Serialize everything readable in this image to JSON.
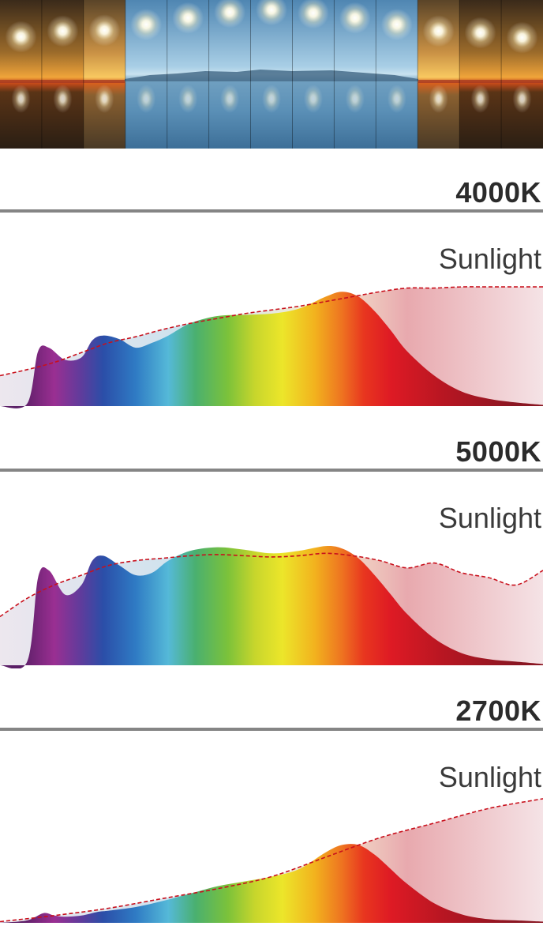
{
  "chart_data": [
    {
      "type": "area",
      "title": "4000K",
      "reference_series": "Sunlight",
      "x_range": [
        0,
        100
      ],
      "y_range": [
        0,
        1
      ],
      "series": [
        {
          "name": "4000K",
          "x": [
            0,
            5,
            7,
            9,
            12,
            15,
            17,
            19,
            22,
            25,
            28,
            31,
            35,
            40,
            45,
            50,
            55,
            60,
            63,
            66,
            69,
            72,
            75,
            80,
            85,
            90,
            95,
            100
          ],
          "values": [
            0,
            0.02,
            0.45,
            0.48,
            0.38,
            0.4,
            0.54,
            0.58,
            0.55,
            0.48,
            0.52,
            0.58,
            0.68,
            0.74,
            0.75,
            0.76,
            0.8,
            0.9,
            0.94,
            0.9,
            0.78,
            0.62,
            0.45,
            0.25,
            0.12,
            0.06,
            0.03,
            0.01
          ]
        },
        {
          "name": "Sunlight",
          "x": [
            0,
            5,
            10,
            15,
            20,
            25,
            30,
            35,
            40,
            45,
            50,
            55,
            60,
            65,
            70,
            75,
            80,
            85,
            90,
            95,
            100
          ],
          "values": [
            0.25,
            0.3,
            0.36,
            0.44,
            0.52,
            0.57,
            0.63,
            0.68,
            0.72,
            0.76,
            0.79,
            0.82,
            0.86,
            0.9,
            0.94,
            0.97,
            0.97,
            0.98,
            0.98,
            0.98,
            0.98
          ]
        }
      ]
    },
    {
      "type": "area",
      "title": "5000K",
      "reference_series": "Sunlight",
      "x_range": [
        0,
        100
      ],
      "y_range": [
        0,
        1
      ],
      "series": [
        {
          "name": "5000K",
          "x": [
            0,
            5,
            7,
            9,
            12,
            15,
            17,
            19,
            22,
            25,
            28,
            31,
            35,
            40,
            45,
            50,
            55,
            60,
            63,
            66,
            69,
            72,
            75,
            80,
            85,
            90,
            95,
            100
          ],
          "values": [
            0,
            0.03,
            0.72,
            0.78,
            0.58,
            0.66,
            0.86,
            0.9,
            0.82,
            0.74,
            0.76,
            0.86,
            0.94,
            0.97,
            0.95,
            0.92,
            0.94,
            0.98,
            0.96,
            0.88,
            0.74,
            0.58,
            0.42,
            0.22,
            0.1,
            0.05,
            0.03,
            0.01
          ]
        },
        {
          "name": "Sunlight",
          "x": [
            0,
            5,
            10,
            15,
            20,
            25,
            30,
            35,
            40,
            45,
            50,
            55,
            60,
            65,
            70,
            75,
            80,
            85,
            90,
            95,
            100
          ],
          "values": [
            0.4,
            0.55,
            0.66,
            0.74,
            0.82,
            0.86,
            0.88,
            0.9,
            0.91,
            0.9,
            0.89,
            0.9,
            0.92,
            0.9,
            0.86,
            0.8,
            0.84,
            0.76,
            0.72,
            0.66,
            0.78
          ]
        }
      ]
    },
    {
      "type": "area",
      "title": "2700K",
      "reference_series": "Sunlight",
      "x_range": [
        0,
        100
      ],
      "y_range": [
        0,
        1
      ],
      "series": [
        {
          "name": "2700K",
          "x": [
            0,
            5,
            8,
            10,
            12,
            15,
            18,
            20,
            25,
            30,
            35,
            40,
            45,
            50,
            55,
            60,
            63,
            66,
            69,
            72,
            75,
            80,
            85,
            90,
            95,
            100
          ],
          "values": [
            0,
            0.02,
            0.08,
            0.06,
            0.05,
            0.06,
            0.09,
            0.1,
            0.13,
            0.18,
            0.24,
            0.3,
            0.34,
            0.38,
            0.44,
            0.58,
            0.64,
            0.64,
            0.56,
            0.44,
            0.32,
            0.16,
            0.07,
            0.03,
            0.02,
            0.01
          ]
        },
        {
          "name": "Sunlight",
          "x": [
            0,
            10,
            20,
            30,
            40,
            50,
            60,
            70,
            80,
            90,
            100
          ],
          "values": [
            0.01,
            0.06,
            0.12,
            0.2,
            0.28,
            0.38,
            0.54,
            0.7,
            0.82,
            0.94,
            1.02
          ]
        }
      ]
    }
  ],
  "sections": [
    {
      "temperature_label": "4000K",
      "sunlight_label": "Sunlight"
    },
    {
      "temperature_label": "5000K",
      "sunlight_label": "Sunlight"
    },
    {
      "temperature_label": "2700K",
      "sunlight_label": "Sunlight"
    }
  ],
  "banner": {
    "panel_count": 13,
    "sun_heights": [
      0.45,
      0.38,
      0.37,
      0.3,
      0.22,
      0.15,
      0.12,
      0.16,
      0.22,
      0.3,
      0.38,
      0.4,
      0.46
    ],
    "panel_tones": [
      "warm",
      "warm",
      "warm",
      "cool",
      "cool",
      "cool",
      "cool",
      "cool",
      "cool",
      "cool",
      "warm",
      "warm",
      "warm"
    ]
  },
  "colors": {
    "temperature_text": "#2b2b2b",
    "rule": "#858585",
    "sunlight_dash": "#c8101c",
    "sunlight_fill": "#e8a9ae",
    "spectrum_stops": [
      "#5a1e66",
      "#9a2f92",
      "#5e3c9c",
      "#2b4ea8",
      "#2f7bc4",
      "#55b9d8",
      "#4ab06f",
      "#7cc23a",
      "#c8d62c",
      "#ece62a",
      "#f2b21e",
      "#ee7320",
      "#e8361f",
      "#de1a24",
      "#b61622",
      "#8a1622"
    ]
  }
}
